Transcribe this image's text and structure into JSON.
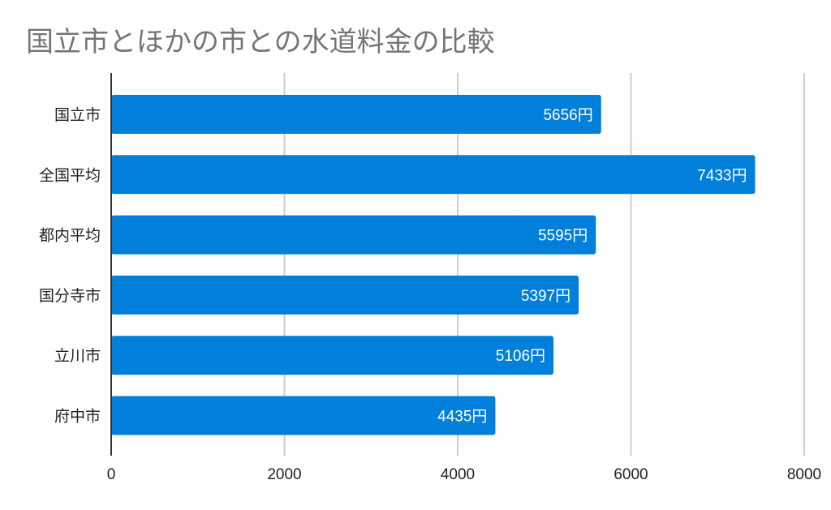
{
  "chart_data": {
    "type": "bar",
    "orientation": "horizontal",
    "title": "国立市とほかの市との水道料金の比較",
    "categories": [
      "国立市",
      "全国平均",
      "都内平均",
      "国分寺市",
      "立川市",
      "府中市"
    ],
    "values": [
      5656,
      7433,
      5595,
      5397,
      5106,
      4435
    ],
    "data_labels": [
      "5656円",
      "7433円",
      "5595円",
      "5397円",
      "5106円",
      "4435円"
    ],
    "xlim": [
      0,
      8000
    ],
    "x_ticks": [
      "0",
      "2000",
      "4000",
      "6000",
      "8000"
    ],
    "grid": true,
    "bar_color": "#0080DB",
    "grid_color": "#CCCCCC",
    "label_color": "#FFFFFF"
  }
}
